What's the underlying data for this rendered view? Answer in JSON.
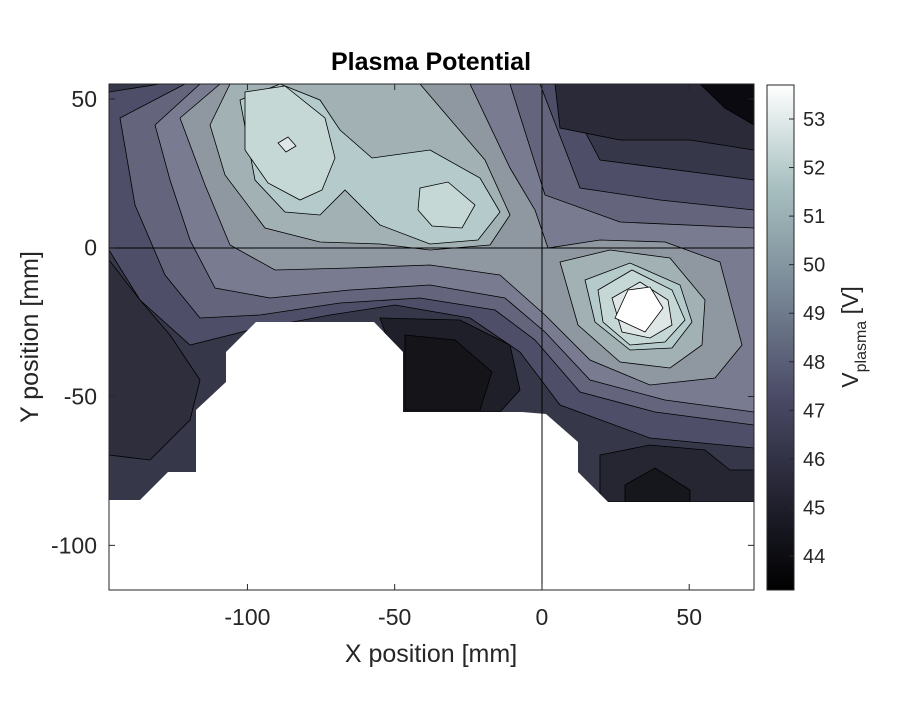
{
  "chart_data": {
    "type": "contour",
    "title": "Plasma Potential",
    "xlabel": "X position [mm]",
    "ylabel": "Y position [mm]",
    "xlim": [
      -147,
      72
    ],
    "ylim": [
      -115,
      55
    ],
    "x_ticks": [
      -100,
      -50,
      0,
      50
    ],
    "y_ticks": [
      50,
      0,
      -50,
      -100
    ],
    "x_tick_labels": [
      "-100",
      "-50",
      "0",
      "50"
    ],
    "y_tick_labels": [
      "50",
      "0",
      "-50",
      "-100"
    ],
    "reference_lines": {
      "x": 0,
      "y": 0
    },
    "colorbar": {
      "label_main": "V",
      "label_sub": "plasma",
      "label_unit": " [V]",
      "range": [
        43.3,
        53.7
      ],
      "ticks": [
        53,
        52,
        51,
        50,
        49,
        48,
        47,
        46,
        45,
        44
      ],
      "tick_labels": [
        "53",
        "52",
        "51",
        "50",
        "49",
        "48",
        "47",
        "46",
        "45",
        "44"
      ],
      "colormap": "bone"
    },
    "contour_levels": [
      45,
      46,
      47,
      48,
      49,
      50,
      51,
      52,
      53
    ],
    "features": [
      {
        "name": "local maximum",
        "x": 32,
        "y": -22,
        "value": 53.3
      },
      {
        "name": "local maximum",
        "x": -87,
        "y": 35,
        "value": 52.6
      },
      {
        "name": "local maximum",
        "x": -32,
        "y": 14,
        "value": 51.8
      },
      {
        "name": "local minimum",
        "x": 68,
        "y": 52,
        "value": 43.6
      },
      {
        "name": "local minimum",
        "x": -45,
        "y": -40,
        "value": 44.7
      },
      {
        "name": "local minimum",
        "x": 35,
        "y": -78,
        "value": 44.6
      }
    ],
    "grid": false,
    "legend": "colorbar right"
  }
}
